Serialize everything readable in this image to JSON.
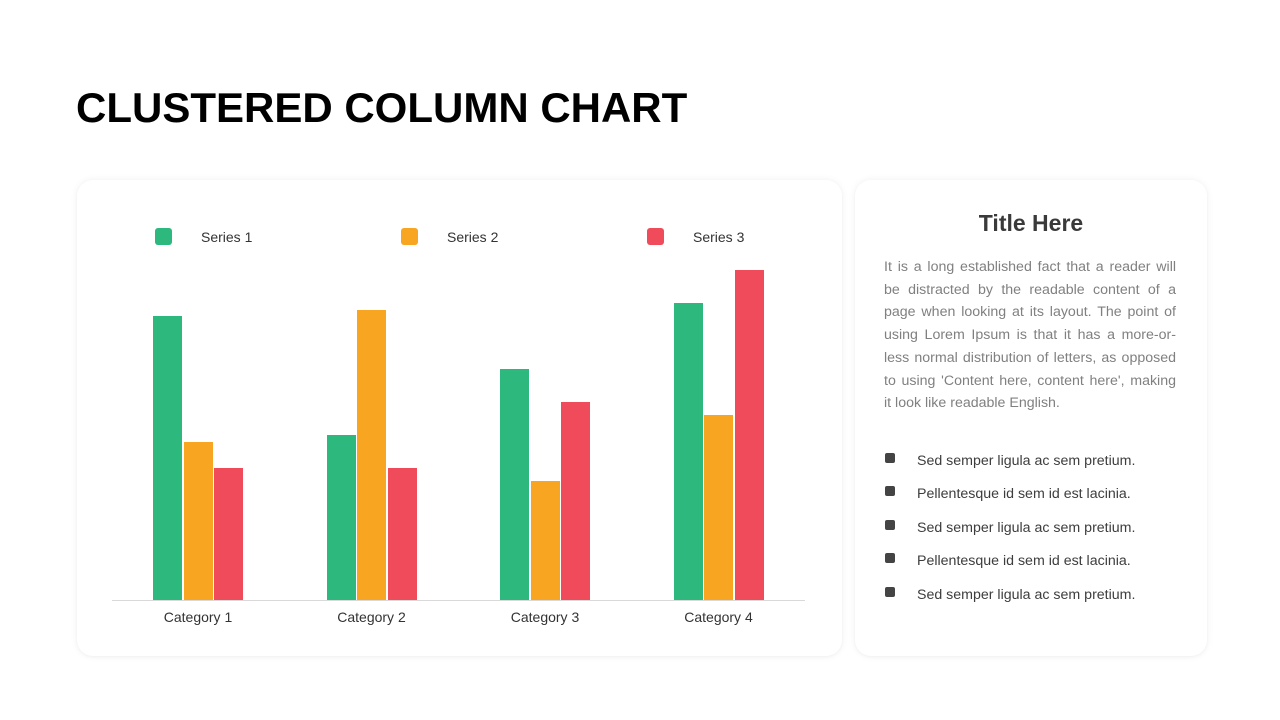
{
  "page": {
    "title": "CLUSTERED COLUMN CHART"
  },
  "info": {
    "title": "Title Here",
    "body": "It is a long established fact that a reader will be distracted by the readable content of a page when looking at its layout. The point of using Lorem Ipsum is that it has a more-or-less normal distribution of letters, as opposed to using 'Content here, content here', making it look like readable English.",
    "bullets": [
      "Sed semper ligula ac sem pretium.",
      "Pellentesque id sem id est lacinia.",
      "Sed semper ligula ac sem pretium.",
      "Pellentesque id sem id est lacinia.",
      "Sed semper ligula ac sem pretium."
    ]
  },
  "chart_data": {
    "type": "bar",
    "title": "",
    "xlabel": "",
    "ylabel": "",
    "ylim": [
      0,
      5.17
    ],
    "grid": false,
    "legend_position": "top",
    "categories": [
      "Category 1",
      "Category 2",
      "Category 3",
      "Category 4"
    ],
    "series": [
      {
        "name": "Series 1",
        "color": "#2db87d",
        "values": [
          4.3,
          2.5,
          3.5,
          4.5
        ]
      },
      {
        "name": "Series 2",
        "color": "#f8a621",
        "values": [
          2.4,
          4.4,
          1.8,
          2.8
        ]
      },
      {
        "name": "Series 3",
        "color": "#ef4b5a",
        "values": [
          2.0,
          2.0,
          3.0,
          5.0
        ]
      }
    ]
  }
}
